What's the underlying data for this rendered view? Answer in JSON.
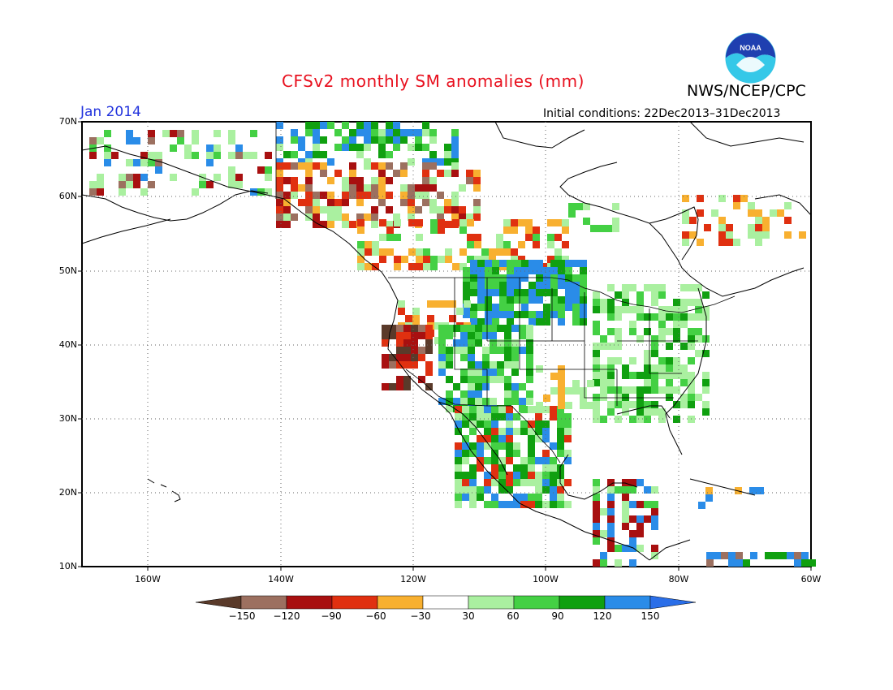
{
  "title": "CFSv2 monthly SM anomalies (mm)",
  "agency": "NWS/NCEP/CPC",
  "logo_text": "NOAA",
  "valid_month": "Jan 2014",
  "initial_conditions": "Initial conditions: 22Dec2013–31Dec2013",
  "lat_ticks": [
    "70N",
    "60N",
    "50N",
    "40N",
    "30N",
    "20N",
    "10N"
  ],
  "lon_ticks": [
    "160W",
    "140W",
    "120W",
    "100W",
    "80W",
    "60W"
  ],
  "colorbar": {
    "labels": [
      "−150",
      "−120",
      "−90",
      "−60",
      "−30",
      "30",
      "60",
      "90",
      "120",
      "150"
    ],
    "colors": [
      "#5a3a2a",
      "#9c7060",
      "#a81010",
      "#e03010",
      "#f8b030",
      "#ffffff",
      "#aaf0a0",
      "#44d044",
      "#10a010",
      "#2a8ce8",
      "#2a6ee8"
    ]
  },
  "anomaly_colors": {
    "dry_extreme": "#5a3a2a",
    "dry_very": "#9c7060",
    "dry_strong": "#a81010",
    "dry_moderate": "#e03010",
    "dry_light": "#f8b030",
    "wet_light": "#aaf0a0",
    "wet_moderate": "#44d044",
    "wet_strong": "#10a010",
    "wet_very": "#2a8ce8"
  }
}
